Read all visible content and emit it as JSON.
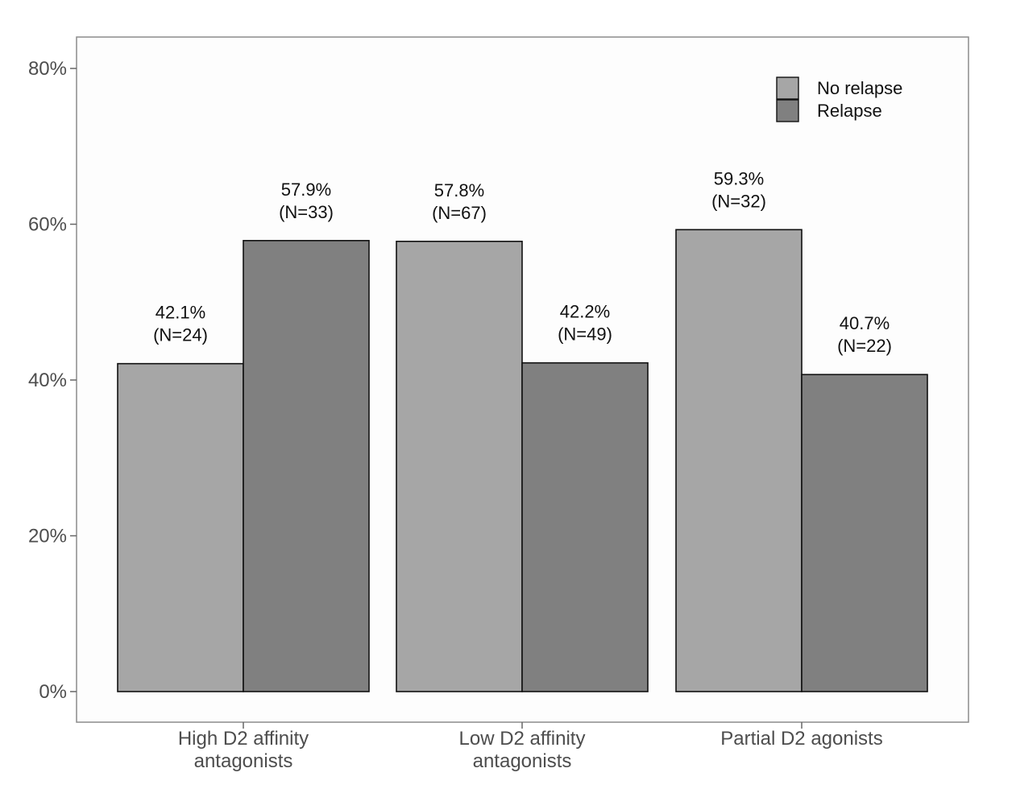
{
  "chart_data": {
    "type": "bar",
    "categories": [
      [
        "High D2 affinity",
        "antagonists"
      ],
      [
        "Low D2 affinity",
        "antagonists"
      ],
      [
        "Partial D2 agonists"
      ]
    ],
    "series": [
      {
        "name": "No relapse",
        "color": "#a6a6a6",
        "values": [
          42.1,
          57.8,
          59.3
        ],
        "labels": [
          [
            "42.1%",
            "(N=24)"
          ],
          [
            "57.8%",
            "(N=67)"
          ],
          [
            "59.3%",
            "(N=32)"
          ]
        ]
      },
      {
        "name": "Relapse",
        "color": "#808080",
        "values": [
          57.9,
          42.2,
          40.7
        ],
        "labels": [
          [
            "57.9%",
            "(N=33)"
          ],
          [
            "42.2%",
            "(N=49)"
          ],
          [
            "40.7%",
            "(N=22)"
          ]
        ]
      }
    ],
    "yticks": [
      0,
      20,
      40,
      60,
      80
    ],
    "ytick_labels": [
      "0%",
      "20%",
      "40%",
      "60%",
      "80%"
    ],
    "ylim": [
      0,
      84
    ],
    "xlabel": "",
    "ylabel": "",
    "title": "",
    "grid": false,
    "legend_position": "top-right"
  }
}
